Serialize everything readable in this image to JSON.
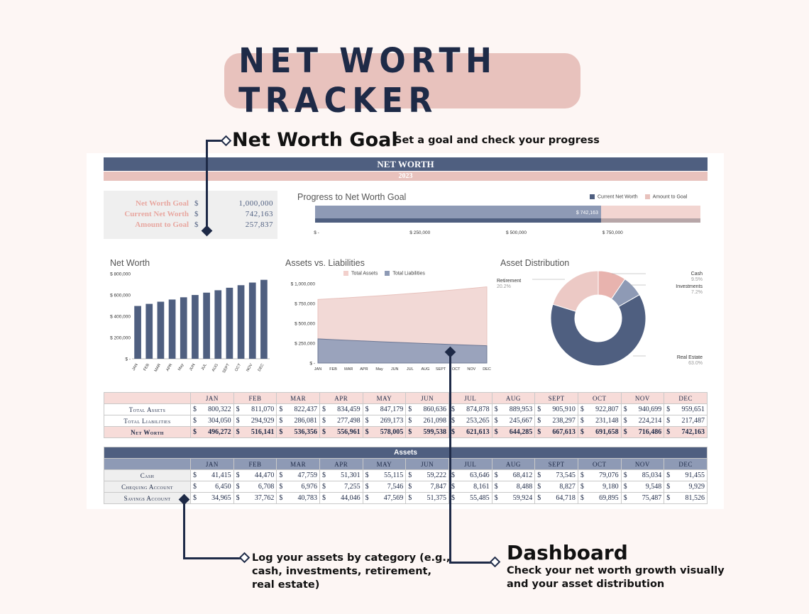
{
  "title": "NET WORTH TRACKER",
  "annotations": {
    "goal_title": "Net Worth Goal",
    "goal_sub": "Set a goal and check your progress",
    "log_text": "Log your assets by category (e.g., cash, investments, retirement, real estate)",
    "log_lines": [
      "Log your assets by category (e.g.,",
      "cash, investments, retirement,",
      "real estate)"
    ],
    "dash_title": "Dashboard",
    "dash_lines": [
      "Check your net worth growth visually",
      "and your asset distribution"
    ]
  },
  "sheet": {
    "header": "NET WORTH",
    "year": "2023",
    "goal_box": [
      {
        "label": "Net Worth Goal",
        "currency": "$",
        "value": "1,000,000"
      },
      {
        "label": "Current Net Worth",
        "currency": "$",
        "value": "742,163"
      },
      {
        "label": "Amount to Goal",
        "currency": "$",
        "value": "257,837"
      }
    ]
  },
  "colors": {
    "navy": "#4f5f80",
    "pink": "#e8c2bd",
    "dark": "#1e2a47"
  },
  "chart_data": [
    {
      "type": "bar",
      "title": "Progress to Net Worth Goal",
      "orientation": "horizontal-stacked",
      "series": [
        {
          "name": "Current Net Worth",
          "values": [
            742163
          ],
          "label": "$ 742,163"
        },
        {
          "name": "Amount to Goal",
          "values": [
            257837
          ]
        }
      ],
      "xlim": [
        0,
        1000000
      ],
      "xticks": [
        "$ -",
        "$ 250,000",
        "$ 500,000",
        "$ 750,000"
      ],
      "legend": "top-right"
    },
    {
      "type": "bar",
      "title": "Net Worth",
      "categories": [
        "JAN",
        "FEB",
        "MAR",
        "APR",
        "MAY",
        "JUN",
        "JUL",
        "AUG",
        "SEPT",
        "OCT",
        "NOV",
        "DEC"
      ],
      "tick_labels": [
        "JAN",
        "FEB",
        "MAR",
        "APR",
        "May",
        "JUN",
        "JUL",
        "AUG",
        "SEPT",
        "OCT",
        "NOV",
        "DEC"
      ],
      "values": [
        496272,
        516141,
        536356,
        556961,
        578005,
        599538,
        621613,
        644285,
        667613,
        691658,
        716486,
        742163
      ],
      "ylim": [
        0,
        800000
      ],
      "yticks": [
        "$ -",
        "$ 200,000",
        "$ 400,000",
        "$ 600,000",
        "$ 800,000"
      ]
    },
    {
      "type": "area",
      "title": "Assets vs. Liabilities",
      "categories": [
        "JAN",
        "FEB",
        "MAR",
        "APR",
        "May",
        "JUN",
        "JUL",
        "AUG",
        "SEPT",
        "OCT",
        "NOV",
        "DEC"
      ],
      "series": [
        {
          "name": "Total Assets",
          "values": [
            800322,
            811070,
            822437,
            834459,
            847179,
            860636,
            874878,
            889953,
            905910,
            922807,
            940699,
            959651
          ]
        },
        {
          "name": "Total Liabilities",
          "values": [
            304050,
            294929,
            286081,
            277498,
            269173,
            261098,
            253265,
            245667,
            238297,
            231148,
            224214,
            217487
          ]
        }
      ],
      "ylim": [
        0,
        1000000
      ],
      "yticks": [
        "$ -",
        "$ 250,000",
        "$ 500,000",
        "$ 750,000",
        "$ 1,000,000"
      ],
      "legend": "top"
    },
    {
      "type": "pie",
      "title": "Asset Distribution",
      "style": "donut",
      "slices": [
        {
          "name": "Cash",
          "value": 9.5,
          "label": "9.5%"
        },
        {
          "name": "Investments",
          "value": 7.2,
          "label": "7.2%"
        },
        {
          "name": "Real Estate",
          "value": 63.0,
          "label": "63.0%"
        },
        {
          "name": "Retirement",
          "value": 20.2,
          "label": "20.2%"
        }
      ]
    }
  ],
  "summary_table": {
    "months": [
      "JAN",
      "FEB",
      "MAR",
      "APR",
      "MAY",
      "JUN",
      "JUL",
      "AUG",
      "SEPT",
      "OCT",
      "NOV",
      "DEC"
    ],
    "rows": [
      {
        "label": "Total Assets",
        "values": [
          "800,322",
          "811,070",
          "822,437",
          "834,459",
          "847,179",
          "860,636",
          "874,878",
          "889,953",
          "905,910",
          "922,807",
          "940,699",
          "959,651"
        ]
      },
      {
        "label": "Total Liabilities",
        "values": [
          "304,050",
          "294,929",
          "286,081",
          "277,498",
          "269,173",
          "261,098",
          "253,265",
          "245,667",
          "238,297",
          "231,148",
          "224,214",
          "217,487"
        ]
      },
      {
        "label": "Net Worth",
        "values": [
          "496,272",
          "516,141",
          "536,356",
          "556,961",
          "578,005",
          "599,538",
          "621,613",
          "644,285",
          "667,613",
          "691,658",
          "716,486",
          "742,163"
        ]
      }
    ]
  },
  "assets_table": {
    "title": "Assets",
    "months": [
      "JAN",
      "FEB",
      "MAR",
      "APR",
      "MAY",
      "JUN",
      "JUL",
      "AUG",
      "SEPT",
      "OCT",
      "NOV",
      "DEC"
    ],
    "rows": [
      {
        "label": "Cash",
        "values": [
          "41,415",
          "44,470",
          "47,759",
          "51,301",
          "55,115",
          "59,222",
          "63,646",
          "68,412",
          "73,545",
          "79,076",
          "85,034",
          "91,455"
        ]
      },
      {
        "label": "Chequing Account",
        "values": [
          "6,450",
          "6,708",
          "6,976",
          "7,255",
          "7,546",
          "7,847",
          "8,161",
          "8,488",
          "8,827",
          "9,180",
          "9,548",
          "9,929"
        ]
      },
      {
        "label": "Savings Account",
        "values": [
          "34,965",
          "37,762",
          "40,783",
          "44,046",
          "47,569",
          "51,375",
          "55,485",
          "59,924",
          "64,718",
          "69,895",
          "75,487",
          "81,526"
        ]
      }
    ]
  }
}
